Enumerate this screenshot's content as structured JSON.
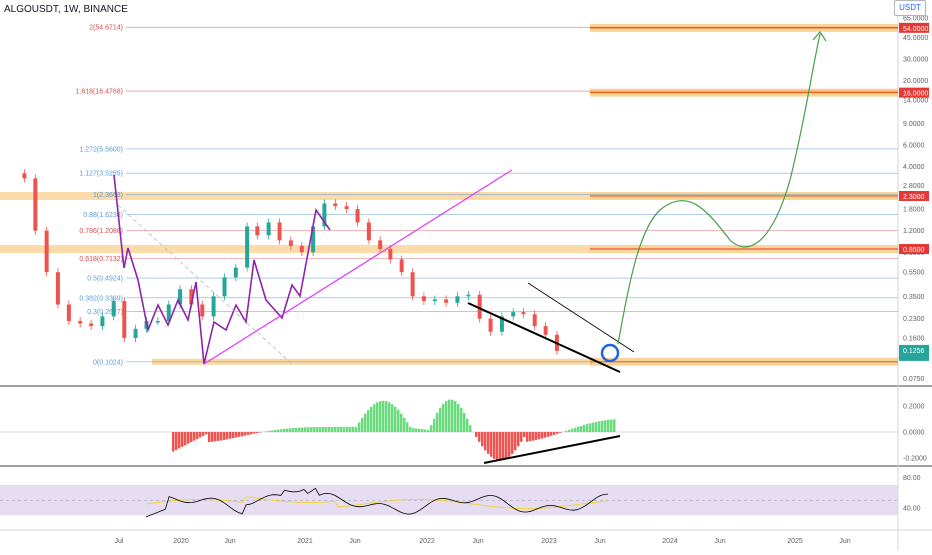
{
  "header": {
    "ticker": "ALGOUSDT, 1W, BINANCE",
    "currency_button": "USDT"
  },
  "colors": {
    "bull": "#26a69a",
    "bear": "#ef5350",
    "wave": "#8e24aa",
    "trend": "#e040fb",
    "zone": "#f5b041",
    "arrow": "#43a047",
    "fib_blue": "#5b9bd5",
    "fib_red": "#d05050",
    "rsi_band": "#e1d5f0",
    "rsi_line": "#000000",
    "rsi_ma": "#f2d43b"
  },
  "chart_data": [
    {
      "type": "candlestick",
      "title": "",
      "scale": "log",
      "ylim": [
        0.065,
        70
      ],
      "y_ticks": [
        "65.0000",
        "45.0000",
        "30.0000",
        "20.0000",
        "14.0000",
        "9.0000",
        "6.0000",
        "4.0000",
        "2.8000",
        "1.8000",
        "1.2000",
        "0.8000",
        "0.5500",
        "0.3500",
        "0.2300",
        "0.1600",
        "0.0750"
      ],
      "x_ticks": [
        "Jul",
        "2020",
        "Jun",
        "2021",
        "Jun",
        "2022",
        "Jun",
        "2023",
        "Jun",
        "2024",
        "Jun",
        "2025",
        "Jun"
      ],
      "price_badges": [
        "54.0000",
        "16.0000",
        "2.3000",
        "0.8500"
      ],
      "current_price": "0.1256",
      "fib_levels": [
        {
          "label": "2(54.6714)",
          "value": 54.6714
        },
        {
          "label": "1.618(16.4768)",
          "value": 16.4768
        },
        {
          "label": "1.272(5.5600)",
          "value": 5.56
        },
        {
          "label": "1.127(3.5265)",
          "value": 3.5265
        },
        {
          "label": "1(2.3668)",
          "value": 2.3668
        },
        {
          "label": "0.88(1.6238)",
          "value": 1.6238
        },
        {
          "label": "0.786(1.2088)",
          "value": 1.2088
        },
        {
          "label": "0.618(0.7132)",
          "value": 0.7132
        },
        {
          "label": "0.5(0.4924)",
          "value": 0.4924
        },
        {
          "label": "0.382(0.3399)",
          "value": 0.3399
        },
        {
          "label": "0.3(0.2627)",
          "value": 0.2627
        },
        {
          "label": "0(0.1024)",
          "value": 0.1024
        }
      ],
      "zones": [
        {
          "value": 54.0
        },
        {
          "value": 16.0
        },
        {
          "value": 2.3
        },
        {
          "value": 0.85
        },
        {
          "value": 0.1024
        }
      ],
      "series": [
        {
          "x": [
            "2019-06",
            "2019-07",
            "2019-08",
            "2019-09",
            "2019-10",
            "2019-11",
            "2019-12",
            "2020-01",
            "2020-02",
            "2020-03",
            "2020-04",
            "2020-05",
            "2020-06",
            "2020-07",
            "2020-08",
            "2020-09",
            "2020-10",
            "2020-11",
            "2020-12",
            "2021-01",
            "2021-02",
            "2021-03",
            "2021-04",
            "2021-05",
            "2021-06",
            "2021-07",
            "2021-08",
            "2021-09",
            "2021-10",
            "2021-11",
            "2021-12",
            "2022-01",
            "2022-02",
            "2022-03",
            "2022-04",
            "2022-05",
            "2022-06",
            "2022-07",
            "2022-08",
            "2022-09",
            "2022-10",
            "2022-11",
            "2022-12",
            "2023-01",
            "2023-02",
            "2023-03",
            "2023-04",
            "2023-05",
            "2023-06"
          ],
          "values": [
            3.2,
            1.2,
            0.55,
            0.3,
            0.22,
            0.21,
            0.2,
            0.24,
            0.32,
            0.16,
            0.19,
            0.22,
            0.22,
            0.3,
            0.4,
            0.3,
            0.24,
            0.35,
            0.5,
            0.6,
            1.3,
            1.1,
            1.4,
            1.0,
            0.9,
            0.8,
            1.3,
            2.0,
            1.9,
            1.8,
            1.4,
            1.0,
            0.85,
            0.7,
            0.55,
            0.35,
            0.32,
            0.33,
            0.31,
            0.35,
            0.36,
            0.23,
            0.18,
            0.24,
            0.26,
            0.25,
            0.2,
            0.17,
            0.1256
          ]
        }
      ]
    },
    {
      "type": "bar",
      "title": "",
      "ylim": [
        -0.25,
        0.3
      ],
      "y_ticks": [
        "0.2000",
        "0.0000",
        "-0.2000"
      ]
    },
    {
      "type": "line",
      "title": "",
      "ylim": [
        20,
        95
      ],
      "y_ticks": [
        "80.00",
        "40.00"
      ]
    }
  ]
}
